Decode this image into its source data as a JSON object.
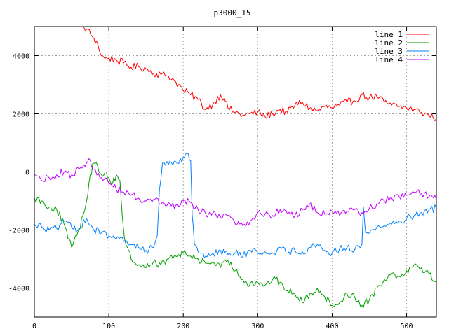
{
  "chart_data": {
    "type": "line",
    "title": "p3000_15",
    "xlabel": "",
    "ylabel": "",
    "xlim": [
      0,
      540
    ],
    "ylim": [
      -5000,
      5000
    ],
    "x_ticks": [
      0,
      100,
      200,
      300,
      400,
      500
    ],
    "y_ticks": [
      -4000,
      -2000,
      0,
      2000,
      4000
    ],
    "grid": true,
    "legend_position": "top-right",
    "series": [
      {
        "name": "line 1",
        "color": "#ff0000",
        "x": [
          0,
          10,
          20,
          30,
          40,
          50,
          60,
          70,
          80,
          85,
          90,
          95,
          100,
          110,
          120,
          130,
          140,
          150,
          160,
          170,
          180,
          190,
          200,
          210,
          220,
          230,
          240,
          250,
          255,
          260,
          270,
          280,
          290,
          300,
          310,
          320,
          330,
          340,
          350,
          360,
          370,
          380,
          390,
          400,
          410,
          420,
          430,
          440,
          450,
          460,
          470,
          480,
          490,
          500,
          510,
          520,
          530,
          540
        ],
        "y": [
          6200,
          5950,
          5800,
          5650,
          5500,
          5350,
          5150,
          4900,
          4600,
          4400,
          4000,
          3900,
          3920,
          3850,
          3750,
          3600,
          3620,
          3550,
          3400,
          3350,
          3300,
          3100,
          2800,
          2650,
          2500,
          2150,
          2350,
          2650,
          2550,
          2200,
          2050,
          1950,
          2000,
          2050,
          1900,
          2000,
          2150,
          2050,
          2300,
          2400,
          2200,
          2100,
          2250,
          2200,
          2300,
          2400,
          2450,
          2650,
          2550,
          2600,
          2400,
          2300,
          2250,
          2200,
          2150,
          2050,
          1950,
          1850
        ]
      },
      {
        "name": "line 2",
        "color": "#00a000",
        "x": [
          0,
          10,
          20,
          30,
          40,
          45,
          50,
          55,
          60,
          65,
          70,
          75,
          80,
          85,
          90,
          95,
          100,
          105,
          110,
          115,
          118,
          121,
          125,
          130,
          140,
          150,
          160,
          170,
          180,
          190,
          200,
          210,
          220,
          230,
          240,
          250,
          260,
          270,
          280,
          290,
          300,
          310,
          320,
          330,
          340,
          350,
          360,
          370,
          380,
          390,
          400,
          410,
          420,
          430,
          440,
          450,
          460,
          470,
          480,
          490,
          500,
          510,
          520,
          530,
          540
        ],
        "y": [
          -900,
          -1000,
          -1200,
          -1300,
          -1800,
          -2300,
          -2600,
          -2200,
          -2000,
          -1500,
          -1000,
          -100,
          300,
          200,
          -100,
          0,
          -200,
          -400,
          -100,
          -300,
          -1500,
          -2300,
          -2600,
          -3000,
          -3200,
          -3300,
          -3100,
          -3200,
          -3000,
          -2900,
          -2800,
          -2900,
          -3000,
          -3150,
          -3100,
          -3300,
          -3050,
          -3400,
          -3700,
          -3850,
          -3800,
          -3900,
          -3700,
          -3800,
          -4100,
          -4200,
          -4500,
          -4200,
          -4000,
          -4300,
          -4600,
          -4500,
          -4200,
          -4300,
          -4600,
          -4400,
          -4000,
          -3700,
          -3500,
          -3600,
          -3400,
          -3200,
          -3300,
          -3500,
          -3800
        ]
      },
      {
        "name": "line 3",
        "color": "#0080ff",
        "x": [
          0,
          10,
          20,
          30,
          40,
          50,
          60,
          70,
          80,
          90,
          100,
          110,
          120,
          130,
          140,
          150,
          160,
          165,
          168,
          172,
          180,
          190,
          200,
          205,
          210,
          212,
          215,
          220,
          225,
          230,
          240,
          250,
          260,
          270,
          280,
          290,
          300,
          310,
          320,
          330,
          340,
          350,
          360,
          370,
          380,
          390,
          400,
          410,
          420,
          430,
          440,
          442,
          445,
          450,
          460,
          470,
          480,
          490,
          500,
          510,
          520,
          530,
          540
        ],
        "y": [
          -1800,
          -1900,
          -2000,
          -1950,
          -1700,
          -1900,
          -1950,
          -1600,
          -2000,
          -2100,
          -2200,
          -2300,
          -2400,
          -2500,
          -2600,
          -2700,
          -2600,
          -2200,
          -600,
          300,
          250,
          350,
          500,
          650,
          400,
          -1500,
          -2500,
          -2750,
          -2800,
          -2900,
          -2800,
          -2700,
          -2850,
          -2800,
          -2900,
          -2700,
          -2800,
          -2750,
          -2800,
          -2600,
          -2800,
          -2700,
          -2750,
          -2600,
          -2500,
          -2700,
          -2800,
          -2650,
          -2600,
          -2700,
          -2500,
          -1200,
          -2100,
          -2100,
          -1900,
          -1850,
          -1800,
          -1700,
          -1600,
          -1500,
          -1400,
          -1300,
          -1250
        ]
      },
      {
        "name": "line 4",
        "color": "#c000ff",
        "x": [
          0,
          10,
          20,
          30,
          40,
          50,
          60,
          70,
          75,
          80,
          90,
          100,
          110,
          120,
          130,
          140,
          150,
          160,
          170,
          180,
          190,
          200,
          210,
          220,
          230,
          240,
          250,
          260,
          270,
          280,
          290,
          300,
          310,
          320,
          330,
          340,
          350,
          360,
          370,
          380,
          390,
          400,
          410,
          420,
          430,
          440,
          450,
          460,
          470,
          480,
          490,
          500,
          510,
          520,
          530,
          540
        ],
        "y": [
          -100,
          -300,
          -200,
          -100,
          0,
          -100,
          100,
          300,
          400,
          100,
          -200,
          -400,
          -600,
          -700,
          -800,
          -900,
          -1000,
          -950,
          -1100,
          -1050,
          -1150,
          -1000,
          -1050,
          -1300,
          -1450,
          -1400,
          -1550,
          -1500,
          -1800,
          -1850,
          -1700,
          -1400,
          -1450,
          -1500,
          -1300,
          -1450,
          -1500,
          -1300,
          -1100,
          -1400,
          -1450,
          -1350,
          -1500,
          -1350,
          -1300,
          -1400,
          -1250,
          -1100,
          -1000,
          -900,
          -850,
          -800,
          -700,
          -750,
          -850,
          -950
        ]
      }
    ]
  }
}
